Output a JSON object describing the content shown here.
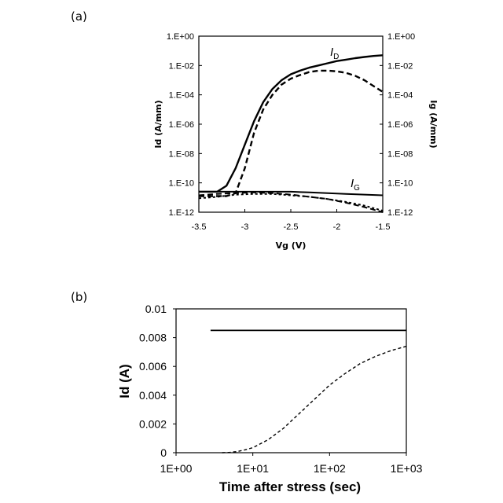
{
  "chart_data": [
    {
      "panel": "(a)",
      "type": "line",
      "xlabel": "Vg (V)",
      "ylabel": "Id (A/mm)",
      "ylabel_right": "Ig (A/mm)",
      "xlim": [
        -3.5,
        -1.5
      ],
      "x_ticks": [
        "-3.5",
        "-3",
        "-2.5",
        "-2",
        "-1.5"
      ],
      "x_tick_values": [
        -3.5,
        -3,
        -2.5,
        -2,
        -1.5
      ],
      "ylim_exp": [
        -12,
        0
      ],
      "y_ticks": [
        "1.E+00",
        "1.E-02",
        "1.E-04",
        "1.E-06",
        "1.E-08",
        "1.E-10",
        "1.E-12"
      ],
      "y_tick_exps": [
        0,
        -2,
        -4,
        -6,
        -8,
        -10,
        -12
      ],
      "y_scale": "log",
      "curve_labels": [
        {
          "main": "I",
          "sub": "D"
        },
        {
          "main": "I",
          "sub": "G"
        }
      ],
      "series": [
        {
          "style": "solid",
          "group": "ID",
          "x": [
            -3.5,
            -3.3,
            -3.2,
            -3.1,
            -3.0,
            -2.9,
            -2.8,
            -2.7,
            -2.6,
            -2.5,
            -2.4,
            -2.3,
            -2.2,
            -2.1,
            -2.0,
            -1.9,
            -1.8,
            -1.7,
            -1.6,
            -1.5
          ],
          "y_exp": [
            -10.6,
            -10.6,
            -10.2,
            -9.0,
            -7.4,
            -5.8,
            -4.5,
            -3.6,
            -3.0,
            -2.6,
            -2.35,
            -2.15,
            -2.0,
            -1.85,
            -1.7,
            -1.6,
            -1.5,
            -1.42,
            -1.35,
            -1.3
          ]
        },
        {
          "style": "dashed",
          "group": "ID",
          "x": [
            -3.5,
            -3.2,
            -3.1,
            -3.0,
            -2.9,
            -2.8,
            -2.7,
            -2.6,
            -2.5,
            -2.4,
            -2.3,
            -2.2,
            -2.1,
            -2.0,
            -1.9,
            -1.8,
            -1.7,
            -1.6,
            -1.5
          ],
          "y_exp": [
            -10.9,
            -10.9,
            -10.7,
            -9.0,
            -6.6,
            -5.0,
            -4.0,
            -3.3,
            -2.9,
            -2.65,
            -2.45,
            -2.35,
            -2.35,
            -2.4,
            -2.5,
            -2.7,
            -3.0,
            -3.4,
            -3.8
          ]
        },
        {
          "style": "solid",
          "group": "IG",
          "x": [
            -3.5,
            -3.3,
            -3.1,
            -2.9,
            -2.7,
            -2.5,
            -2.3,
            -2.1,
            -1.9,
            -1.7,
            -1.5
          ],
          "y_exp": [
            -10.6,
            -10.6,
            -10.6,
            -10.6,
            -10.6,
            -10.6,
            -10.65,
            -10.7,
            -10.75,
            -10.8,
            -10.85
          ]
        },
        {
          "style": "dashed",
          "group": "IG",
          "x": [
            -3.5,
            -3.3,
            -3.1,
            -2.9,
            -2.7,
            -2.5,
            -2.3,
            -2.1,
            -1.9,
            -1.7,
            -1.5
          ],
          "y_exp": [
            -10.85,
            -10.75,
            -10.7,
            -10.65,
            -10.7,
            -10.8,
            -10.95,
            -11.1,
            -11.35,
            -11.65,
            -12.0
          ]
        },
        {
          "style": "dashdot",
          "group": "IG",
          "x": [
            -3.5,
            -3.3,
            -3.1,
            -2.9,
            -2.7,
            -2.5,
            -2.3,
            -2.1,
            -1.9,
            -1.7,
            -1.5
          ],
          "y_exp": [
            -11.05,
            -10.95,
            -10.8,
            -10.75,
            -10.75,
            -10.85,
            -10.95,
            -11.1,
            -11.3,
            -11.55,
            -11.9
          ]
        }
      ]
    },
    {
      "panel": "(b)",
      "type": "line",
      "xlabel": "Time after stress (sec)",
      "ylabel": "Id (A)",
      "x_scale": "log",
      "xlim_exp": [
        0,
        3
      ],
      "x_ticks": [
        "1E+00",
        "1E+01",
        "1E+02",
        "1E+03"
      ],
      "x_tick_exps": [
        0,
        1,
        2,
        3
      ],
      "ylim": [
        0,
        0.01
      ],
      "y_ticks": [
        "0",
        "0.002",
        "0.004",
        "0.006",
        "0.008",
        "0.01"
      ],
      "y_tick_values": [
        0,
        0.002,
        0.004,
        0.006,
        0.008,
        0.01
      ],
      "series": [
        {
          "style": "solid",
          "x_exp": [
            0.45,
            3.0
          ],
          "y": [
            0.0085,
            0.0085
          ]
        },
        {
          "style": "dashed",
          "x_exp": [
            0.6,
            0.7,
            0.8,
            0.9,
            1.0,
            1.2,
            1.4,
            1.6,
            1.8,
            2.0,
            2.2,
            2.4,
            2.6,
            2.8,
            3.0
          ],
          "y": [
            0.0,
            2e-05,
            8e-05,
            0.0002,
            0.00035,
            0.0009,
            0.0017,
            0.0027,
            0.0037,
            0.0047,
            0.0055,
            0.0062,
            0.0067,
            0.0071,
            0.0074
          ]
        }
      ]
    }
  ]
}
